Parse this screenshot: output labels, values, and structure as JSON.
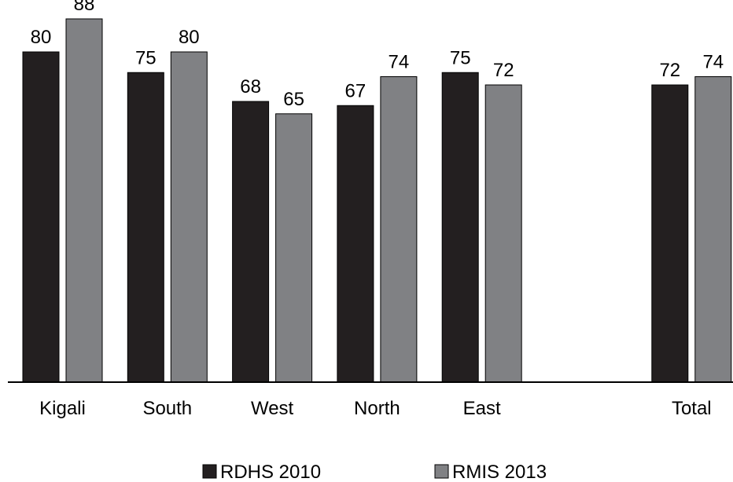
{
  "chart_data": {
    "type": "bar",
    "title": "",
    "xlabel": "",
    "ylabel": "",
    "ylim": [
      0,
      100
    ],
    "grid": false,
    "legend_position": "bottom-center",
    "categories": [
      "Kigali",
      "South",
      "West",
      "North",
      "East",
      "",
      "Total"
    ],
    "series": [
      {
        "name": "RDHS 2010",
        "color": "#231f20",
        "values": [
          80,
          75,
          68,
          67,
          75,
          null,
          72
        ]
      },
      {
        "name": "RMIS 2013",
        "color": "#808184",
        "values": [
          88,
          80,
          65,
          74,
          72,
          null,
          74
        ]
      }
    ]
  }
}
